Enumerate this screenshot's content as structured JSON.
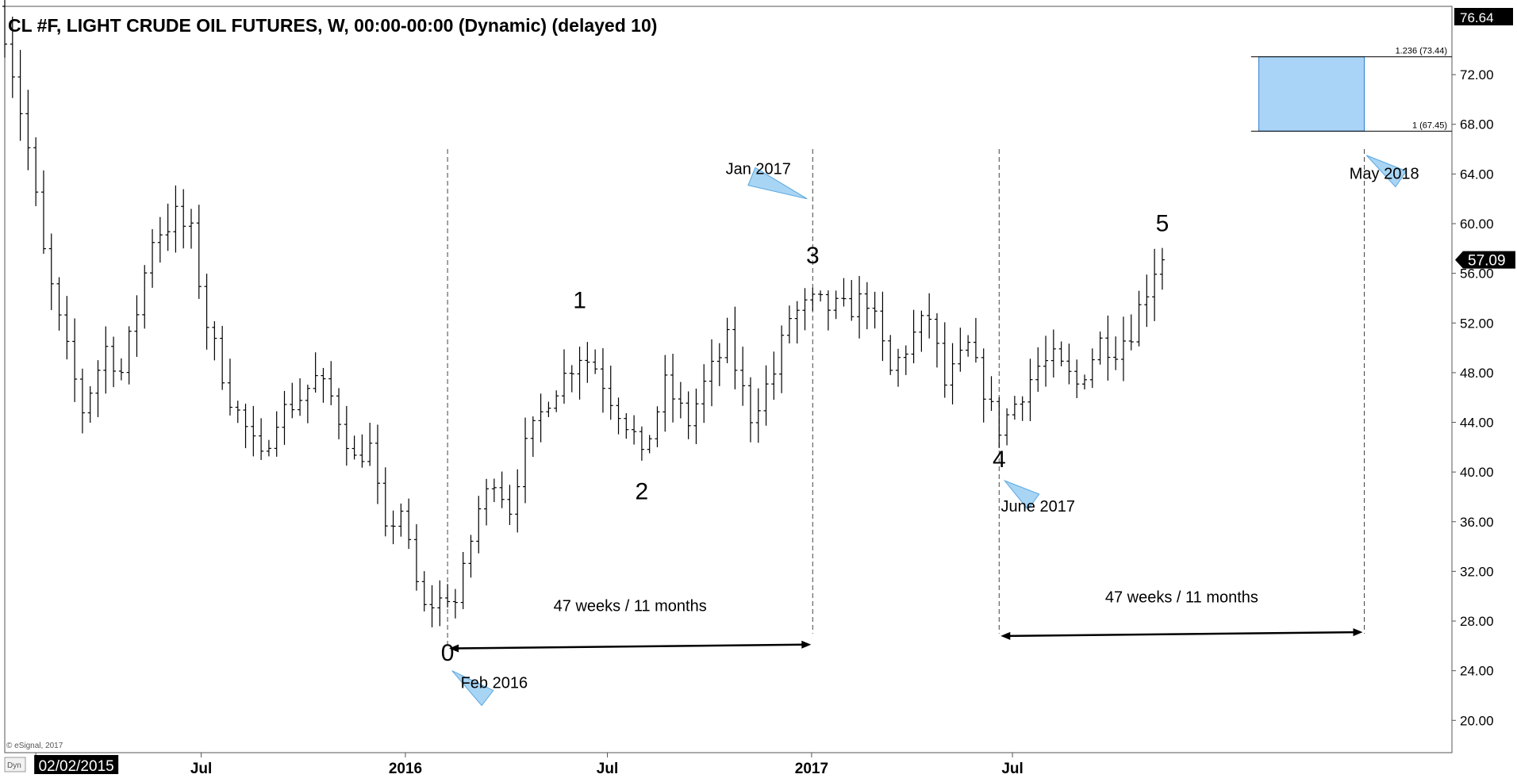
{
  "chart_data": {
    "type": "ohlc",
    "title": "CL #F, LIGHT CRUDE OIL FUTURES, W, 00:00-00:00 (Dynamic) (delayed 10)",
    "y_ticks": [
      20,
      24,
      28,
      32,
      36,
      40,
      44,
      48,
      52,
      56,
      60,
      64,
      68,
      72
    ],
    "y_tick_labels": [
      "20.00",
      "24.00",
      "28.00",
      "32.00",
      "36.00",
      "40.00",
      "44.00",
      "48.00",
      "52.00",
      "56.00",
      "60.00",
      "64.00",
      "68.00",
      "72.00"
    ],
    "ylim": [
      17.4,
      77.5
    ],
    "xlim": [
      "2015-01-05",
      "2018-08-01"
    ],
    "x_ticks": [
      {
        "date": "2015-02-02",
        "label": "02/02/2015",
        "highlight": true
      },
      {
        "date": "2015-07-01",
        "label": "Jul",
        "highlight": false
      },
      {
        "date": "2016-01-01",
        "label": "2016",
        "highlight": false
      },
      {
        "date": "2016-07-01",
        "label": "Jul",
        "highlight": false
      },
      {
        "date": "2017-01-01",
        "label": "2017",
        "highlight": false
      },
      {
        "date": "2017-07-01",
        "label": "Jul",
        "highlight": false
      }
    ],
    "top_price_label": "76.64",
    "last_price": 57.09,
    "last_price_label": "57.09",
    "bar_anchors": [
      [
        "2015-01-05",
        76.0
      ],
      [
        "2015-01-26",
        66.0
      ],
      [
        "2015-02-09",
        57.5
      ],
      [
        "2015-02-23",
        52.0
      ],
      [
        "2015-03-16",
        45.0
      ],
      [
        "2015-04-06",
        50.0
      ],
      [
        "2015-04-20",
        48.0
      ],
      [
        "2015-05-04",
        53.0
      ],
      [
        "2015-05-18",
        59.0
      ],
      [
        "2015-06-08",
        60.5
      ],
      [
        "2015-06-22",
        59.0
      ],
      [
        "2015-07-06",
        52.0
      ],
      [
        "2015-07-27",
        46.0
      ],
      [
        "2015-08-24",
        41.0
      ],
      [
        "2015-09-07",
        44.5
      ],
      [
        "2015-09-28",
        46.0
      ],
      [
        "2015-10-12",
        47.5
      ],
      [
        "2015-10-26",
        46.0
      ],
      [
        "2015-11-16",
        41.0
      ],
      [
        "2015-11-30",
        42.0
      ],
      [
        "2015-12-14",
        35.0
      ],
      [
        "2015-12-28",
        37.0
      ],
      [
        "2016-01-11",
        31.0
      ],
      [
        "2016-01-18",
        29.0
      ],
      [
        "2016-02-08",
        30.0
      ],
      [
        "2016-02-15",
        29.5
      ],
      [
        "2016-03-07",
        37.0
      ],
      [
        "2016-03-21",
        39.5
      ],
      [
        "2016-04-04",
        37.0
      ],
      [
        "2016-04-18",
        42.0
      ],
      [
        "2016-05-09",
        46.0
      ],
      [
        "2016-06-06",
        49.5
      ],
      [
        "2016-06-20",
        48.5
      ],
      [
        "2016-07-04",
        46.0
      ],
      [
        "2016-07-25",
        43.0
      ],
      [
        "2016-08-01",
        41.0
      ],
      [
        "2016-08-22",
        47.0
      ],
      [
        "2016-09-12",
        44.0
      ],
      [
        "2016-09-26",
        47.0
      ],
      [
        "2016-10-17",
        50.5
      ],
      [
        "2016-11-07",
        44.5
      ],
      [
        "2016-11-28",
        48.0
      ],
      [
        "2016-12-12",
        52.5
      ],
      [
        "2017-01-02",
        53.5
      ],
      [
        "2017-01-30",
        53.0
      ],
      [
        "2017-02-20",
        54.0
      ],
      [
        "2017-03-13",
        48.0
      ],
      [
        "2017-04-03",
        51.0
      ],
      [
        "2017-04-17",
        52.5
      ],
      [
        "2017-05-01",
        47.0
      ],
      [
        "2017-05-22",
        50.0
      ],
      [
        "2017-06-12",
        45.0
      ],
      [
        "2017-06-19",
        43.5
      ],
      [
        "2017-07-03",
        45.5
      ],
      [
        "2017-07-24",
        48.5
      ],
      [
        "2017-08-07",
        49.0
      ],
      [
        "2017-08-28",
        47.0
      ],
      [
        "2017-09-18",
        50.5
      ],
      [
        "2017-10-02",
        50.0
      ],
      [
        "2017-10-16",
        51.5
      ],
      [
        "2017-11-06",
        56.5
      ],
      [
        "2017-11-13",
        57.5
      ]
    ],
    "wave_labels": [
      {
        "text": "0",
        "date": "2016-02-08",
        "price": 24.8
      },
      {
        "text": "1",
        "date": "2016-06-06",
        "price": 53.2
      },
      {
        "text": "2",
        "date": "2016-08-01",
        "price": 37.8
      },
      {
        "text": "3",
        "date": "2017-01-02",
        "price": 56.8
      },
      {
        "text": "4",
        "date": "2017-06-19",
        "price": 40.4
      },
      {
        "text": "5",
        "date": "2017-11-13",
        "price": 59.4
      }
    ],
    "vertical_lines": [
      {
        "date": "2016-02-08",
        "from": 66.0,
        "to": 26.0
      },
      {
        "date": "2017-01-02",
        "from": 66.0,
        "to": 27.0
      },
      {
        "date": "2017-06-19",
        "from": 66.0,
        "to": 27.0
      },
      {
        "date": "2018-05-14",
        "from": 66.0,
        "to": 27.0
      }
    ],
    "measurements": [
      {
        "text": "47 weeks / 11 months",
        "from": "2016-02-08",
        "to": "2017-01-02",
        "from_price": 25.8,
        "to_price": 26.1,
        "label_price": 28.8
      },
      {
        "text": "47 weeks / 11 months",
        "from": "2017-06-19",
        "to": "2018-05-14",
        "from_price": 26.8,
        "to_price": 27.1,
        "label_price": 29.5
      }
    ],
    "annotations": [
      {
        "text": "Feb 2016",
        "date": "2016-03-21",
        "price": 22.6,
        "pointer": {
          "tip": [
            "2016-02-12",
            24.0
          ],
          "base": [
            "2016-03-15",
            21.8
          ]
        }
      },
      {
        "text": "Jan 2017",
        "date": "2016-11-14",
        "price": 64.0,
        "pointer": {
          "tip": [
            "2016-12-28",
            62.0
          ],
          "base": [
            "2016-11-08",
            63.8
          ]
        }
      },
      {
        "text": "June 2017",
        "date": "2017-07-24",
        "price": 36.8,
        "pointer": {
          "tip": [
            "2017-06-24",
            39.3
          ],
          "base": [
            "2017-07-20",
            37.6
          ]
        }
      },
      {
        "text": "May 2018",
        "date": "2018-06-01",
        "price": 63.6,
        "pointer": {
          "tip": [
            "2018-05-16",
            65.5
          ],
          "base": [
            "2018-06-16",
            63.6
          ]
        }
      }
    ],
    "target_zone": {
      "from": "2018-02-08",
      "to": "2018-05-14",
      "line_from": "2018-02-01",
      "line_to": "2018-08-01",
      "low": 67.45,
      "high": 73.44,
      "low_label": "1 (67.45)",
      "high_label": "1.236 (73.44)",
      "color": "#aad4f7"
    },
    "colors": {
      "bars": "#000000",
      "zone": "#aad4f7",
      "zone_border": "#2a7fd0",
      "pointer": "#a9d5f5"
    }
  },
  "footer": {
    "copyright": "© eSignal, 2017",
    "badge": "Dyn"
  }
}
